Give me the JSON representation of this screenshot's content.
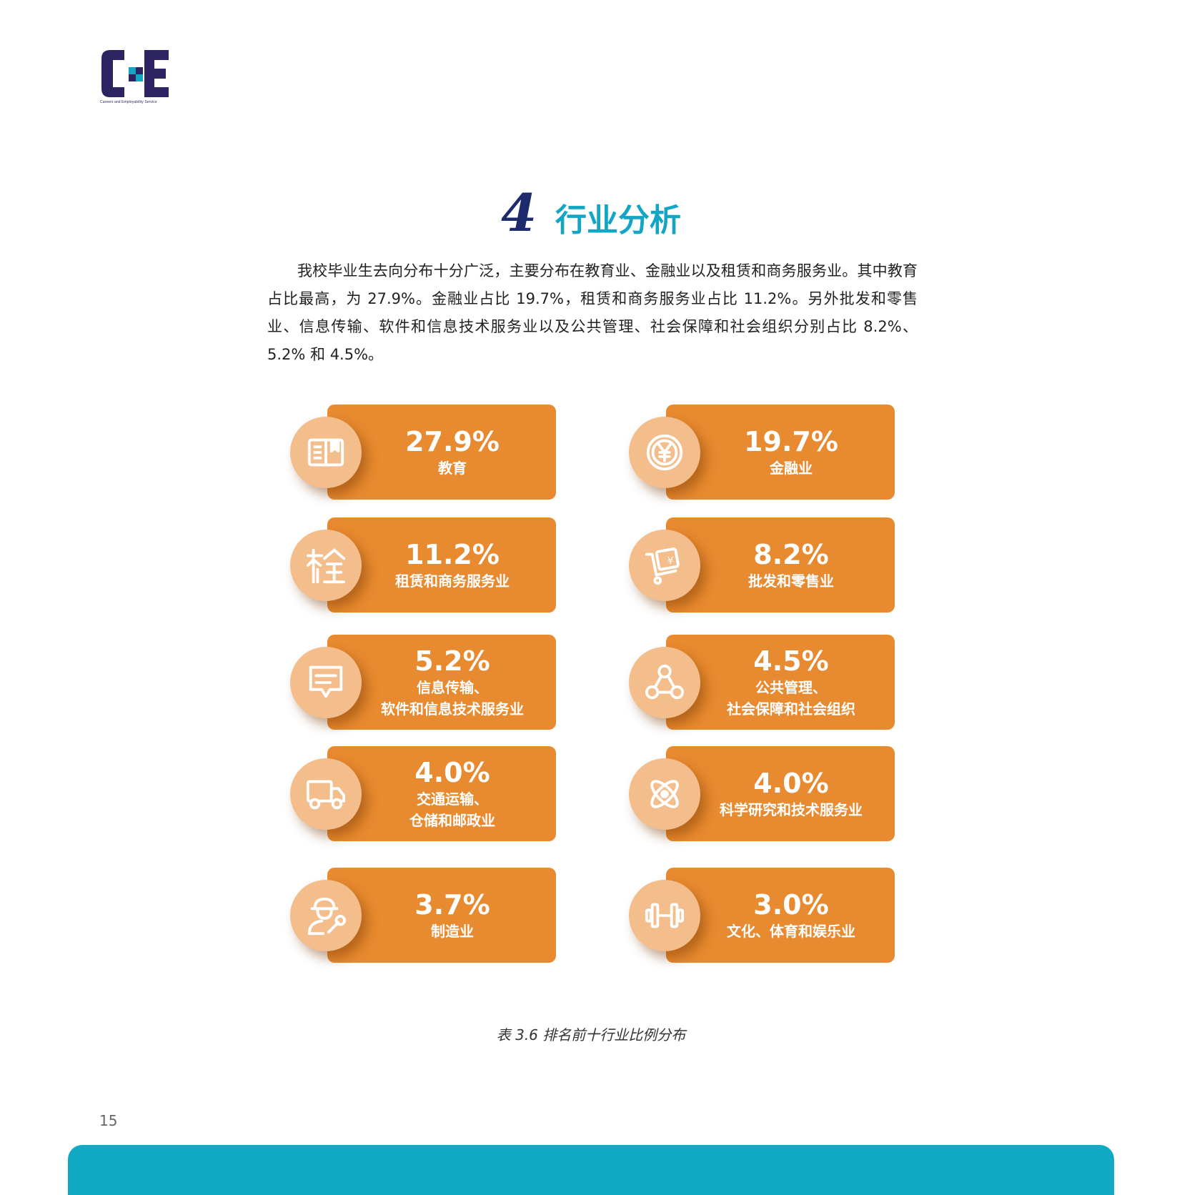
{
  "logo": {
    "tagline": "Careers and Employability Service"
  },
  "section": {
    "number": "4",
    "title": "行业分析"
  },
  "intro": "我校毕业生去向分布十分广泛，主要分布在教育业、金融业以及租赁和商务服务业。其中教育占比最高，为 27.9%。金融业占比 19.7%，租赁和商务服务业占比 11.2%。另外批发和零售业、信息传输、软件和信息技术服务业以及公共管理、社会保障和社会组织分别占比 8.2%、5.2% 和 4.5%。",
  "cards": [
    {
      "value": "27.9%",
      "label": "教育",
      "icon": "book-icon"
    },
    {
      "value": "19.7%",
      "label": "金融业",
      "icon": "yen-coin-icon"
    },
    {
      "value": "11.2%",
      "label": "租赁和商务服务业",
      "icon": "building-icon"
    },
    {
      "value": "8.2%",
      "label": "批发和零售业",
      "icon": "cart-receipt-icon"
    },
    {
      "value": "5.2%",
      "label": "信息传输、\n软件和信息技术服务业",
      "icon": "message-icon"
    },
    {
      "value": "4.5%",
      "label": "公共管理、\n社会保障和社会组织",
      "icon": "network-icon"
    },
    {
      "value": "4.0%",
      "label": "交通运输、\n仓储和邮政业",
      "icon": "truck-icon"
    },
    {
      "value": "4.0%",
      "label": "科学研究和技术服务业",
      "icon": "atom-icon"
    },
    {
      "value": "3.7%",
      "label": "制造业",
      "icon": "worker-wrench-icon"
    },
    {
      "value": "3.0%",
      "label": "文化、体育和娱乐业",
      "icon": "dumbbell-icon"
    }
  ],
  "caption": "表 3.6 排名前十行业比例分布",
  "page_number": "15",
  "colors": {
    "card": "#e88a2f",
    "badge": "#f4be8c",
    "title": "#12a5c4",
    "navy": "#1d2a6b",
    "footer": "#12a9c4"
  }
}
